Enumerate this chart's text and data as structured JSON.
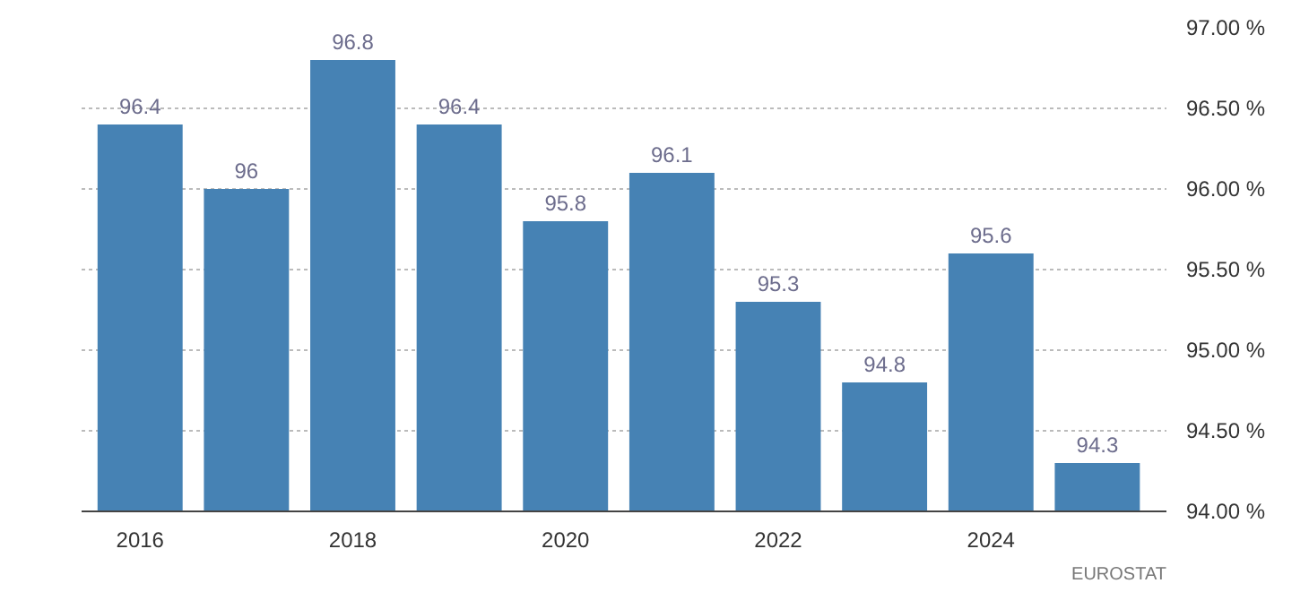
{
  "chart_data": {
    "type": "bar",
    "x": [
      2016,
      2017,
      2018,
      2019,
      2020,
      2021,
      2022,
      2023,
      2024,
      2025
    ],
    "values": [
      96.4,
      96,
      96.8,
      96.4,
      95.8,
      96.1,
      95.3,
      94.8,
      95.6,
      94.3
    ],
    "color": "#4682b4",
    "xlim": [
      2015.45,
      2025.65
    ],
    "xticks": [
      2016,
      2018,
      2020,
      2022,
      2024
    ],
    "ylim": [
      94,
      97
    ],
    "yticks": [
      {
        "value": 94,
        "label": "94.00 %"
      },
      {
        "value": 94.5,
        "label": "94.50 %"
      },
      {
        "value": 95,
        "label": "95.00 %"
      },
      {
        "value": 95.5,
        "label": "95.50 %"
      },
      {
        "value": 96,
        "label": "96.00 %"
      },
      {
        "value": 96.5,
        "label": "96.50 %"
      },
      {
        "value": 97,
        "label": "97.00 %"
      }
    ],
    "grid": "y",
    "data_labels": true,
    "annotations": [
      "EUROSTAT"
    ]
  }
}
